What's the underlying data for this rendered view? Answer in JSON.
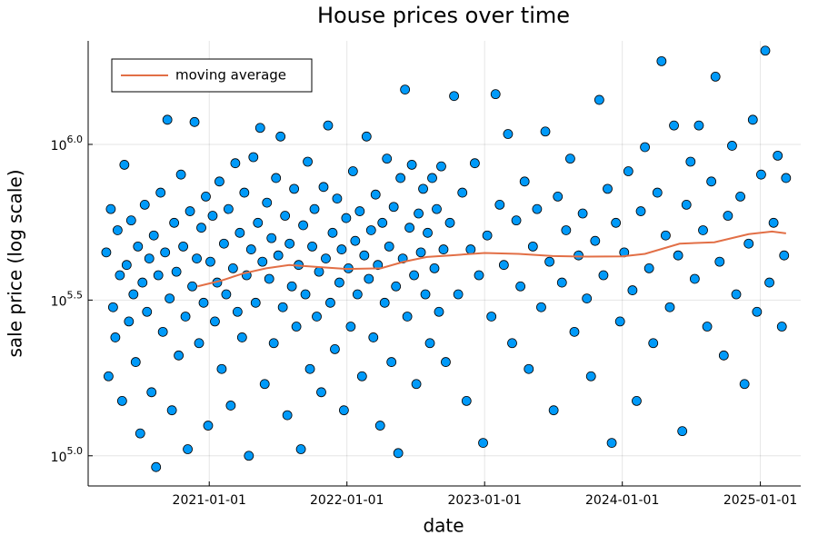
{
  "chart_data": {
    "type": "scatter",
    "title": "House prices over time",
    "x_label": "date",
    "y_label": "sale price (log scale)",
    "yscale": "log",
    "grid": true,
    "legend_position": "top-left",
    "xlim": [
      "2020-02-15",
      "2025-04-18"
    ],
    "xticks": [
      "2021-01-01",
      "2022-01-01",
      "2023-01-01",
      "2024-01-01",
      "2025-01-01"
    ],
    "ylim": [
      80000,
      2150000
    ],
    "yticks": [
      {
        "value": 100000,
        "label": "10^5.0"
      },
      {
        "value": 316228,
        "label": "10^5.5"
      },
      {
        "value": 1000000,
        "label": "10^6.0"
      }
    ],
    "series": [
      {
        "type": "scatter",
        "color": "#009af9",
        "x": [
          "2020-04-03",
          "2020-04-09",
          "2020-04-15",
          "2020-04-21",
          "2020-04-27",
          "2020-05-03",
          "2020-05-09",
          "2020-05-15",
          "2020-05-21",
          "2020-05-27",
          "2020-06-02",
          "2020-06-08",
          "2020-06-14",
          "2020-06-20",
          "2020-06-26",
          "2020-07-02",
          "2020-07-08",
          "2020-07-14",
          "2020-07-20",
          "2020-07-26",
          "2020-08-01",
          "2020-08-07",
          "2020-08-13",
          "2020-08-19",
          "2020-08-25",
          "2020-08-31",
          "2020-09-06",
          "2020-09-12",
          "2020-09-18",
          "2020-09-24",
          "2020-09-30",
          "2020-10-06",
          "2020-10-12",
          "2020-10-18",
          "2020-10-24",
          "2020-10-30",
          "2020-11-05",
          "2020-11-11",
          "2020-11-17",
          "2020-11-23",
          "2020-11-29",
          "2020-12-05",
          "2020-12-11",
          "2020-12-17",
          "2020-12-23",
          "2020-12-29",
          "2021-01-04",
          "2021-01-10",
          "2021-01-16",
          "2021-01-22",
          "2021-01-28",
          "2021-02-03",
          "2021-02-09",
          "2021-02-15",
          "2021-02-21",
          "2021-02-27",
          "2021-03-05",
          "2021-03-11",
          "2021-03-17",
          "2021-03-23",
          "2021-03-29",
          "2021-04-04",
          "2021-04-10",
          "2021-04-16",
          "2021-04-22",
          "2021-04-28",
          "2021-05-04",
          "2021-05-10",
          "2021-05-16",
          "2021-05-22",
          "2021-05-28",
          "2021-06-03",
          "2021-06-09",
          "2021-06-15",
          "2021-06-21",
          "2021-06-27",
          "2021-07-03",
          "2021-07-09",
          "2021-07-15",
          "2021-07-21",
          "2021-07-27",
          "2021-08-02",
          "2021-08-08",
          "2021-08-14",
          "2021-08-20",
          "2021-08-26",
          "2021-09-01",
          "2021-09-07",
          "2021-09-13",
          "2021-09-19",
          "2021-09-25",
          "2021-10-01",
          "2021-10-07",
          "2021-10-13",
          "2021-10-19",
          "2021-10-25",
          "2021-10-31",
          "2021-11-06",
          "2021-11-12",
          "2021-11-18",
          "2021-11-24",
          "2021-11-30",
          "2021-12-06",
          "2021-12-12",
          "2021-12-18",
          "2021-12-24",
          "2021-12-30",
          "2022-01-05",
          "2022-01-11",
          "2022-01-17",
          "2022-01-23",
          "2022-01-29",
          "2022-02-04",
          "2022-02-10",
          "2022-02-16",
          "2022-02-22",
          "2022-02-28",
          "2022-03-06",
          "2022-03-12",
          "2022-03-18",
          "2022-03-24",
          "2022-03-30",
          "2022-04-05",
          "2022-04-11",
          "2022-04-17",
          "2022-04-23",
          "2022-04-29",
          "2022-05-05",
          "2022-05-11",
          "2022-05-17",
          "2022-05-23",
          "2022-05-29",
          "2022-06-04",
          "2022-06-10",
          "2022-06-16",
          "2022-06-22",
          "2022-06-28",
          "2022-07-04",
          "2022-07-10",
          "2022-07-16",
          "2022-07-22",
          "2022-07-28",
          "2022-08-03",
          "2022-08-09",
          "2022-08-15",
          "2022-08-21",
          "2022-08-27",
          "2022-09-02",
          "2022-09-08",
          "2022-09-14",
          "2022-09-20",
          "2022-10-01",
          "2022-10-12",
          "2022-10-23",
          "2022-11-03",
          "2022-11-14",
          "2022-11-25",
          "2022-12-06",
          "2022-12-17",
          "2022-12-28",
          "2023-01-08",
          "2023-01-19",
          "2023-01-30",
          "2023-02-10",
          "2023-02-21",
          "2023-03-04",
          "2023-03-15",
          "2023-03-26",
          "2023-04-06",
          "2023-04-17",
          "2023-04-28",
          "2023-05-09",
          "2023-05-20",
          "2023-05-31",
          "2023-06-11",
          "2023-06-22",
          "2023-07-03",
          "2023-07-14",
          "2023-07-25",
          "2023-08-05",
          "2023-08-16",
          "2023-08-27",
          "2023-09-07",
          "2023-09-18",
          "2023-09-29",
          "2023-10-10",
          "2023-10-21",
          "2023-11-01",
          "2023-11-12",
          "2023-11-23",
          "2023-12-04",
          "2023-12-15",
          "2023-12-26",
          "2024-01-06",
          "2024-01-17",
          "2024-01-28",
          "2024-02-08",
          "2024-02-19",
          "2024-03-01",
          "2024-03-12",
          "2024-03-23",
          "2024-04-03",
          "2024-04-14",
          "2024-04-25",
          "2024-05-06",
          "2024-05-17",
          "2024-05-28",
          "2024-06-08",
          "2024-06-19",
          "2024-06-30",
          "2024-07-11",
          "2024-07-22",
          "2024-08-02",
          "2024-08-13",
          "2024-08-24",
          "2024-09-04",
          "2024-09-15",
          "2024-09-26",
          "2024-10-07",
          "2024-10-18",
          "2024-10-29",
          "2024-11-09",
          "2024-11-20",
          "2024-12-01",
          "2024-12-12",
          "2024-12-23",
          "2025-01-03",
          "2025-01-14",
          "2025-01-25",
          "2025-02-05",
          "2025-02-16",
          "2025-02-27",
          "2025-03-05",
          "2025-03-10"
        ],
        "values": [
          450000,
          180000,
          620000,
          300000,
          240000,
          530000,
          380000,
          150000,
          860000,
          410000,
          270000,
          570000,
          330000,
          200000,
          470000,
          118000,
          360000,
          640000,
          290000,
          430000,
          160000,
          510000,
          92000,
          380000,
          700000,
          250000,
          450000,
          1200000,
          320000,
          140000,
          560000,
          390000,
          210000,
          800000,
          470000,
          280000,
          105000,
          610000,
          350000,
          1180000,
          430000,
          230000,
          540000,
          310000,
          680000,
          125000,
          420000,
          590000,
          270000,
          360000,
          760000,
          190000,
          480000,
          330000,
          620000,
          145000,
          400000,
          870000,
          290000,
          520000,
          240000,
          700000,
          380000,
          100000,
          460000,
          910000,
          310000,
          560000,
          1130000,
          420000,
          170000,
          650000,
          370000,
          500000,
          230000,
          780000,
          440000,
          1060000,
          300000,
          590000,
          135000,
          480000,
          350000,
          720000,
          260000,
          410000,
          105000,
          550000,
          330000,
          880000,
          190000,
          470000,
          620000,
          280000,
          390000,
          160000,
          730000,
          430000,
          1150000,
          310000,
          520000,
          220000,
          670000,
          360000,
          460000,
          140000,
          580000,
          400000,
          260000,
          820000,
          490000,
          330000,
          610000,
          180000,
          440000,
          1060000,
          370000,
          530000,
          240000,
          690000,
          410000,
          125000,
          560000,
          310000,
          900000,
          470000,
          200000,
          630000,
          350000,
          102000,
          780000,
          430000,
          1500000,
          280000,
          540000,
          860000,
          380000,
          170000,
          600000,
          450000,
          720000,
          330000,
          520000,
          230000,
          780000,
          400000,
          620000,
          290000,
          850000,
          460000,
          200000,
          560000,
          1430000,
          330000,
          700000,
          150000,
          460000,
          870000,
          380000,
          110000,
          510000,
          280000,
          1450000,
          640000,
          410000,
          1080000,
          230000,
          570000,
          350000,
          760000,
          190000,
          470000,
          620000,
          300000,
          1100000,
          420000,
          140000,
          680000,
          360000,
          530000,
          900000,
          250000,
          440000,
          600000,
          320000,
          180000,
          490000,
          1390000,
          380000,
          720000,
          110000,
          560000,
          270000,
          450000,
          820000,
          340000,
          150000,
          610000,
          980000,
          400000,
          230000,
          700000,
          1850000,
          510000,
          300000,
          1150000,
          440000,
          120000,
          640000,
          880000,
          370000,
          1150000,
          530000,
          260000,
          760000,
          1650000,
          420000,
          210000,
          590000,
          990000,
          330000,
          680000,
          170000,
          480000,
          1200000,
          290000,
          800000,
          2000000,
          360000,
          560000,
          920000,
          260000,
          440000,
          780000
        ]
      },
      {
        "type": "line",
        "name": "moving average",
        "color": "#e26f46",
        "x": [
          "2020-12-01",
          "2021-02-01",
          "2021-04-01",
          "2021-06-01",
          "2021-08-01",
          "2021-10-01",
          "2022-01-01",
          "2022-04-01",
          "2022-06-01",
          "2022-08-01",
          "2022-10-01",
          "2023-01-01",
          "2023-04-01",
          "2023-07-01",
          "2023-10-01",
          "2024-01-01",
          "2024-03-01",
          "2024-06-01",
          "2024-09-01",
          "2024-12-01",
          "2025-02-01",
          "2025-03-10"
        ],
        "values": [
          350000,
          365000,
          385000,
          400000,
          410000,
          405000,
          398000,
          400000,
          420000,
          435000,
          440000,
          448000,
          445000,
          438000,
          436000,
          437000,
          445000,
          480000,
          485000,
          515000,
          525000,
          518000
        ]
      }
    ]
  }
}
